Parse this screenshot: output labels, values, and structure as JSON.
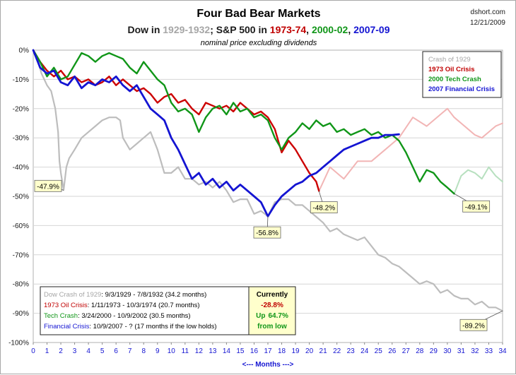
{
  "chart_data": {
    "type": "line",
    "title": "Four Bad Bear Markets",
    "subtitle_parts": [
      {
        "text": "Dow in ",
        "color": "#1a1a1a"
      },
      {
        "text": "1929-1932",
        "color": "#a6a6a6"
      },
      {
        "text": "; S&P 500 in ",
        "color": "#1a1a1a"
      },
      {
        "text": "1973-74",
        "color": "#c00000"
      },
      {
        "text": ", ",
        "color": "#1a1a1a"
      },
      {
        "text": "2000-02",
        "color": "#109618"
      },
      {
        "text": ", ",
        "color": "#1a1a1a"
      },
      {
        "text": "2007-09",
        "color": "#1414d2"
      }
    ],
    "note": "nominal price excluding dividends",
    "source": "dshort.com",
    "date": "12/21/2009",
    "xlabel": "<--- Months --->",
    "xlim": [
      0,
      34
    ],
    "ylim": [
      -100,
      0
    ],
    "x_ticks": [
      "0",
      "1",
      "2",
      "3",
      "4",
      "5",
      "6",
      "7",
      "8",
      "9",
      "10",
      "11",
      "12",
      "13",
      "14",
      "15",
      "16",
      "17",
      "18",
      "19",
      "20",
      "21",
      "22",
      "23",
      "24",
      "25",
      "26",
      "27",
      "28",
      "29",
      "30",
      "31",
      "32",
      "33",
      "34"
    ],
    "y_ticks": [
      "0%",
      "-10%",
      "-20%",
      "-30%",
      "-40%",
      "-50%",
      "-60%",
      "-70%",
      "-80%",
      "-90%",
      "-100%"
    ],
    "legend": [
      {
        "label": "Crash of 1929",
        "color": "#a6a6a6"
      },
      {
        "label": "1973 Oil Crisis",
        "color": "#c00000"
      },
      {
        "label": "2000 Tech Crash",
        "color": "#109618"
      },
      {
        "label": "2007 Financial Crisis",
        "color": "#1414d2"
      }
    ],
    "series": [
      {
        "name": "Crash of 1929",
        "color": "#bdbdbd",
        "points": [
          [
            0,
            0
          ],
          [
            0.3,
            -3
          ],
          [
            0.6,
            -8
          ],
          [
            1.0,
            -12
          ],
          [
            1.3,
            -14
          ],
          [
            1.6,
            -20
          ],
          [
            1.8,
            -28
          ],
          [
            1.9,
            -38
          ],
          [
            2.0,
            -42
          ],
          [
            2.2,
            -47.9
          ],
          [
            2.4,
            -40
          ],
          [
            2.6,
            -37
          ],
          [
            3.0,
            -34
          ],
          [
            3.5,
            -30
          ],
          [
            4.0,
            -28
          ],
          [
            4.5,
            -26
          ],
          [
            5.0,
            -24
          ],
          [
            5.5,
            -23
          ],
          [
            6.0,
            -23
          ],
          [
            6.3,
            -24
          ],
          [
            6.5,
            -30
          ],
          [
            7.0,
            -34
          ],
          [
            7.5,
            -32
          ],
          [
            8.0,
            -30
          ],
          [
            8.5,
            -28
          ],
          [
            9.0,
            -34
          ],
          [
            9.5,
            -42
          ],
          [
            10.0,
            -42
          ],
          [
            10.5,
            -40
          ],
          [
            11.0,
            -44
          ],
          [
            11.5,
            -44
          ],
          [
            12.0,
            -46
          ],
          [
            12.5,
            -45
          ],
          [
            13.0,
            -47
          ],
          [
            13.5,
            -45
          ],
          [
            14.0,
            -48
          ],
          [
            14.5,
            -52
          ],
          [
            15.0,
            -51
          ],
          [
            15.5,
            -51
          ],
          [
            16.0,
            -56
          ],
          [
            16.5,
            -55
          ],
          [
            17.0,
            -56.8
          ],
          [
            17.5,
            -52
          ],
          [
            18.0,
            -51
          ],
          [
            18.5,
            -51
          ],
          [
            19.0,
            -53
          ],
          [
            19.5,
            -53
          ],
          [
            20.0,
            -55
          ],
          [
            20.5,
            -57
          ],
          [
            21.0,
            -59
          ],
          [
            21.5,
            -62
          ],
          [
            22.0,
            -61
          ],
          [
            22.5,
            -63
          ],
          [
            23.0,
            -64
          ],
          [
            23.5,
            -65
          ],
          [
            24.0,
            -64
          ],
          [
            24.5,
            -67
          ],
          [
            25.0,
            -70
          ],
          [
            25.5,
            -71
          ],
          [
            26.0,
            -73
          ],
          [
            26.5,
            -74
          ],
          [
            27.0,
            -76
          ],
          [
            27.5,
            -78
          ],
          [
            28.0,
            -80
          ],
          [
            28.5,
            -79
          ],
          [
            29.0,
            -80
          ],
          [
            29.5,
            -83
          ],
          [
            30.0,
            -82
          ],
          [
            30.5,
            -84
          ],
          [
            31.0,
            -85
          ],
          [
            31.5,
            -85
          ],
          [
            32.0,
            -87
          ],
          [
            32.5,
            -86
          ],
          [
            33.0,
            -88
          ],
          [
            33.5,
            -88
          ],
          [
            34.0,
            -89.2
          ]
        ]
      },
      {
        "name": "1973 Oil Crisis",
        "color": "#cc0000",
        "points": [
          [
            0,
            0
          ],
          [
            0.5,
            -4
          ],
          [
            1.0,
            -7
          ],
          [
            1.5,
            -9
          ],
          [
            2.0,
            -7
          ],
          [
            2.5,
            -10
          ],
          [
            3.0,
            -9
          ],
          [
            3.5,
            -11
          ],
          [
            4.0,
            -10
          ],
          [
            4.5,
            -12
          ],
          [
            5.0,
            -11
          ],
          [
            5.5,
            -9
          ],
          [
            6.0,
            -12
          ],
          [
            6.5,
            -10
          ],
          [
            7.0,
            -12
          ],
          [
            7.5,
            -14
          ],
          [
            8.0,
            -13
          ],
          [
            8.5,
            -15
          ],
          [
            9.0,
            -18
          ],
          [
            9.5,
            -16
          ],
          [
            10.0,
            -15
          ],
          [
            10.5,
            -18
          ],
          [
            11.0,
            -17
          ],
          [
            11.5,
            -20
          ],
          [
            12.0,
            -22
          ],
          [
            12.5,
            -18
          ],
          [
            13.0,
            -19
          ],
          [
            13.5,
            -20
          ],
          [
            14.0,
            -19
          ],
          [
            14.5,
            -21
          ],
          [
            15.0,
            -18
          ],
          [
            15.5,
            -20
          ],
          [
            16.0,
            -22
          ],
          [
            16.5,
            -21
          ],
          [
            17.0,
            -23
          ],
          [
            17.5,
            -27
          ],
          [
            18.0,
            -35
          ],
          [
            18.5,
            -31
          ],
          [
            19.0,
            -34
          ],
          [
            19.5,
            -38
          ],
          [
            20.0,
            -42
          ],
          [
            20.5,
            -45
          ],
          [
            20.7,
            -48.2
          ]
        ]
      },
      {
        "name": "2000 Tech Crash",
        "color": "#109618",
        "points": [
          [
            0,
            0
          ],
          [
            0.5,
            -4
          ],
          [
            1.0,
            -9
          ],
          [
            1.5,
            -6
          ],
          [
            2.0,
            -10
          ],
          [
            2.5,
            -9
          ],
          [
            3.0,
            -5
          ],
          [
            3.5,
            -1
          ],
          [
            4.0,
            -2
          ],
          [
            4.5,
            -4
          ],
          [
            5.0,
            -2
          ],
          [
            5.5,
            -1
          ],
          [
            6.0,
            -2
          ],
          [
            6.5,
            -3
          ],
          [
            7.0,
            -6
          ],
          [
            7.5,
            -8
          ],
          [
            8.0,
            -4
          ],
          [
            8.5,
            -7
          ],
          [
            9.0,
            -10
          ],
          [
            9.5,
            -12
          ],
          [
            10.0,
            -18
          ],
          [
            10.5,
            -21
          ],
          [
            11.0,
            -20
          ],
          [
            11.5,
            -22
          ],
          [
            12.0,
            -28
          ],
          [
            12.5,
            -23
          ],
          [
            13.0,
            -20
          ],
          [
            13.5,
            -19
          ],
          [
            14.0,
            -22
          ],
          [
            14.5,
            -18
          ],
          [
            15.0,
            -21
          ],
          [
            15.5,
            -20
          ],
          [
            16.0,
            -23
          ],
          [
            16.5,
            -22
          ],
          [
            17.0,
            -24
          ],
          [
            17.5,
            -30
          ],
          [
            18.0,
            -34
          ],
          [
            18.5,
            -30
          ],
          [
            19.0,
            -28
          ],
          [
            19.5,
            -25
          ],
          [
            20.0,
            -27
          ],
          [
            20.5,
            -24
          ],
          [
            21.0,
            -26
          ],
          [
            21.5,
            -25
          ],
          [
            22.0,
            -28
          ],
          [
            22.5,
            -27
          ],
          [
            23.0,
            -29
          ],
          [
            23.5,
            -28
          ],
          [
            24.0,
            -27
          ],
          [
            24.5,
            -29
          ],
          [
            25.0,
            -28
          ],
          [
            25.5,
            -30
          ],
          [
            26.0,
            -29
          ],
          [
            26.5,
            -31
          ],
          [
            27.0,
            -35
          ],
          [
            27.5,
            -40
          ],
          [
            28.0,
            -45
          ],
          [
            28.5,
            -41
          ],
          [
            29.0,
            -42
          ],
          [
            29.5,
            -45
          ],
          [
            30.0,
            -47
          ],
          [
            30.5,
            -49.1
          ]
        ]
      },
      {
        "name": "2007 Financial Crisis",
        "color": "#1414d2",
        "points": [
          [
            0,
            0
          ],
          [
            0.5,
            -6
          ],
          [
            1.0,
            -8
          ],
          [
            1.5,
            -7
          ],
          [
            2.0,
            -11
          ],
          [
            2.5,
            -12
          ],
          [
            3.0,
            -9
          ],
          [
            3.5,
            -13
          ],
          [
            4.0,
            -11
          ],
          [
            4.5,
            -12
          ],
          [
            5.0,
            -10
          ],
          [
            5.5,
            -11
          ],
          [
            6.0,
            -9
          ],
          [
            6.5,
            -12
          ],
          [
            7.0,
            -14
          ],
          [
            7.5,
            -12
          ],
          [
            8.0,
            -16
          ],
          [
            8.5,
            -20
          ],
          [
            9.0,
            -22
          ],
          [
            9.5,
            -24
          ],
          [
            10.0,
            -30
          ],
          [
            10.5,
            -34
          ],
          [
            11.0,
            -39
          ],
          [
            11.5,
            -44
          ],
          [
            12.0,
            -42
          ],
          [
            12.5,
            -46
          ],
          [
            13.0,
            -44
          ],
          [
            13.5,
            -47
          ],
          [
            14.0,
            -45
          ],
          [
            14.5,
            -48
          ],
          [
            15.0,
            -46
          ],
          [
            15.5,
            -48
          ],
          [
            16.0,
            -50
          ],
          [
            16.5,
            -52
          ],
          [
            17.0,
            -56.8
          ],
          [
            17.5,
            -53
          ],
          [
            18.0,
            -50
          ],
          [
            18.5,
            -48
          ],
          [
            19.0,
            -46
          ],
          [
            19.5,
            -45
          ],
          [
            20.0,
            -43
          ],
          [
            20.5,
            -42
          ],
          [
            21.0,
            -40
          ],
          [
            21.5,
            -38
          ],
          [
            22.0,
            -36
          ],
          [
            22.5,
            -34
          ],
          [
            23.0,
            -33
          ],
          [
            23.5,
            -32
          ],
          [
            24.0,
            -31
          ],
          [
            24.5,
            -30
          ],
          [
            25.0,
            -30
          ],
          [
            25.5,
            -29
          ],
          [
            26.0,
            -29
          ],
          [
            26.5,
            -28.8
          ]
        ]
      },
      {
        "name": "1973 Oil Crisis (recovery)",
        "color": "#f2b5b5",
        "points": [
          [
            20.7,
            -48.2
          ],
          [
            21.5,
            -40
          ],
          [
            22.5,
            -44
          ],
          [
            23.5,
            -38
          ],
          [
            24.5,
            -38
          ],
          [
            25.5,
            -34
          ],
          [
            26.5,
            -30
          ],
          [
            27.5,
            -23
          ],
          [
            28.5,
            -26
          ],
          [
            29.5,
            -22
          ],
          [
            30.0,
            -20
          ],
          [
            30.5,
            -23
          ],
          [
            31.0,
            -25
          ],
          [
            31.5,
            -27
          ],
          [
            32.0,
            -29
          ],
          [
            32.5,
            -30
          ],
          [
            33.0,
            -28
          ],
          [
            33.5,
            -26
          ],
          [
            34.0,
            -25
          ]
        ]
      },
      {
        "name": "2000 Tech Crash (recovery)",
        "color": "#b7e0bf",
        "points": [
          [
            30.5,
            -49.1
          ],
          [
            31.0,
            -43
          ],
          [
            31.5,
            -41
          ],
          [
            32.0,
            -42
          ],
          [
            32.5,
            -44
          ],
          [
            33.0,
            -40
          ],
          [
            33.5,
            -43
          ],
          [
            34.0,
            -45
          ]
        ]
      }
    ],
    "callouts": [
      {
        "text": "-47.9%",
        "x": 2.2,
        "y": -47.9
      },
      {
        "text": "-56.8%",
        "x": 17.0,
        "y": -56.8
      },
      {
        "text": "-48.2%",
        "x": 20.7,
        "y": -48.2
      },
      {
        "text": "-49.1%",
        "x": 30.5,
        "y": -49.1
      },
      {
        "text": "-89.2%",
        "x": 34.0,
        "y": -89.2
      }
    ],
    "info_lines": [
      {
        "head": "Dow Crash of 1929",
        "head_color": "#a6a6a6",
        "rest": ": 9/3/1929 - 7/8/1932 (34.2 months)"
      },
      {
        "head": "1973 Oil Crisis",
        "head_color": "#c00000",
        "rest": ": 1/11/1973 - 10/3/1974 (20.7 months)"
      },
      {
        "head": "Tech Crash",
        "head_color": "#109618",
        "rest": ":  3/24/2000 - 10/9/2002 (30.5 months)"
      },
      {
        "head": "Financial Crisis",
        "head_color": "#1414d2",
        "rest": ": 10/9/2007 - ?  (17 months if the low holds)"
      }
    ],
    "status_box": {
      "title": "Currently",
      "value": "-28.8%",
      "up_label": "Up",
      "up_value": "64.7%",
      "footer": "from low"
    }
  }
}
